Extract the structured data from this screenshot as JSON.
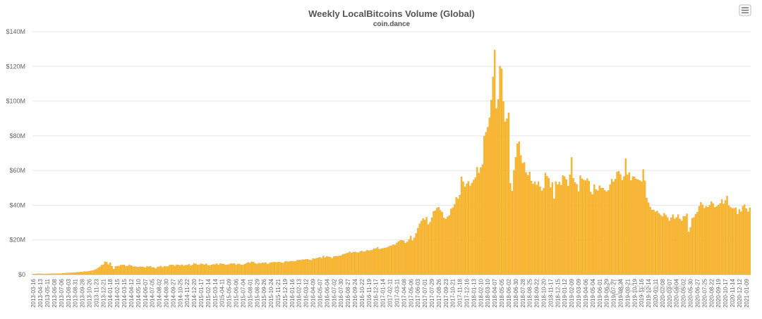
{
  "chart_data": {
    "type": "bar",
    "title": "Weekly LocalBitcoins Volume (Global)",
    "subtitle": "coin.dance",
    "ylim": [
      0,
      140000000
    ],
    "yticks": [
      {
        "value": 0,
        "label": "$0"
      },
      {
        "value": 20000000,
        "label": "$20M"
      },
      {
        "value": 40000000,
        "label": "$40M"
      },
      {
        "value": 60000000,
        "label": "$60M"
      },
      {
        "value": 80000000,
        "label": "$80M"
      },
      {
        "value": 100000000,
        "label": "$100M"
      },
      {
        "value": 120000000,
        "label": "$120M"
      },
      {
        "value": 140000000,
        "label": "$140M"
      }
    ],
    "grid": true,
    "bar_color": "#f7b731",
    "x_start": "2013-03-16",
    "x_step_weeks": 1,
    "tick_every_weeks": 4,
    "values_millions": [
      0.3,
      0.4,
      0.5,
      0.5,
      0.5,
      0.5,
      0.4,
      0.4,
      0.5,
      0.5,
      0.5,
      0.6,
      0.6,
      0.6,
      0.6,
      0.6,
      0.6,
      0.8,
      0.8,
      0.9,
      1.0,
      1.0,
      1.1,
      1.2,
      1.2,
      1.4,
      1.4,
      1.5,
      1.5,
      1.8,
      1.8,
      1.8,
      2.0,
      2.2,
      2.3,
      2.7,
      3.1,
      3.8,
      4.3,
      5.5,
      5.7,
      7.5,
      7.3,
      5.8,
      6.9,
      4.8,
      3.2,
      4.7,
      4.9,
      4.9,
      5.5,
      5.6,
      5.6,
      4.8,
      4.9,
      5.7,
      5.2,
      4.7,
      4.6,
      4.6,
      4.3,
      4.6,
      4.5,
      4.5,
      4.0,
      4.7,
      4.6,
      4.8,
      4.2,
      4.1,
      3.5,
      4.3,
      4.6,
      4.9,
      4.2,
      4.8,
      4.7,
      4.7,
      5.5,
      5.6,
      5.6,
      5.0,
      5.7,
      5.6,
      5.2,
      5.8,
      5.1,
      5.5,
      5.5,
      6.0,
      5.1,
      5.6,
      6.5,
      6.2,
      5.6,
      5.7,
      6.3,
      6.0,
      5.7,
      6.3,
      5.4,
      5.3,
      5.6,
      5.9,
      5.8,
      6.4,
      5.6,
      6.4,
      6.2,
      6.1,
      5.6,
      5.7,
      5.9,
      6.4,
      6.3,
      6.4,
      5.7,
      6.1,
      6.2,
      5.6,
      5.6,
      6.0,
      6.6,
      7.1,
      6.7,
      7.4,
      7.2,
      6.5,
      6.2,
      6.7,
      6.4,
      6.9,
      6.7,
      7.0,
      6.1,
      6.6,
      7.0,
      7.1,
      7.2,
      7.1,
      7.2,
      7.3,
      6.9,
      6.7,
      7.5,
      7.7,
      7.3,
      7.6,
      7.8,
      7.6,
      7.7,
      8.3,
      8.5,
      8.3,
      8.7,
      8.6,
      8.8,
      8.9,
      8.5,
      8.3,
      9.3,
      9.1,
      9.5,
      9.7,
      10.1,
      9.5,
      10.8,
      9.8,
      10.5,
      10.3,
      10.1,
      9.4,
      10.4,
      10.7,
      10.5,
      10.8,
      10.9,
      11.6,
      11.9,
      12.3,
      12.5,
      13.2,
      12.5,
      12.9,
      13.1,
      12.8,
      12.6,
      13.4,
      13.6,
      13.2,
      13.3,
      14.2,
      13.8,
      14.0,
      14.3,
      14.9,
      15.1,
      15.8,
      14.5,
      15.0,
      15.2,
      15.4,
      15.6,
      16.0,
      16.5,
      16.7,
      17.4,
      17.2,
      18.3,
      19.1,
      19.7,
      19.8,
      19.5,
      18.2,
      18.9,
      20.2,
      22.3,
      19.6,
      21.3,
      23.8,
      26.8,
      29.3,
      30.9,
      32.4,
      31.5,
      33.1,
      28.9,
      30.2,
      32.8,
      36.5,
      36.8,
      38.4,
      38.9,
      37.1,
      36.0,
      32.7,
      32.1,
      33.4,
      34.0,
      37.9,
      38.6,
      40.4,
      44.6,
      43.7,
      45.8,
      56.4,
      53.5,
      50.6,
      52.4,
      53.8,
      51.2,
      52.9,
      54.6,
      55.9,
      61.9,
      58.5,
      61.7,
      63.4,
      79.8,
      82.1,
      85.0,
      90.4,
      100.5,
      113.9,
      129.5,
      95.8,
      101.0,
      120.2,
      118.6,
      99.8,
      88.1,
      89.9,
      93.3,
      52.7,
      48.2,
      60.1,
      67.6,
      75.4,
      76.7,
      68.7,
      64.2,
      64.7,
      58.8,
      57.2,
      59.2,
      54.0,
      52.2,
      53.6,
      51.6,
      53.6,
      50.6,
      48.4,
      49.8,
      58.6,
      56.7,
      55.5,
      50.2,
      53.1,
      43.7,
      53.6,
      51.9,
      53.4,
      51.6,
      57.1,
      56.6,
      54.8,
      51.0,
      57.6,
      67.6,
      55.5,
      53.1,
      52.1,
      47.9,
      57.1,
      55.3,
      54.6,
      54.2,
      55.4,
      53.9,
      47.6,
      46.2,
      51.9,
      49.0,
      48.4,
      51.3,
      50.0,
      49.9,
      48.6,
      47.8,
      48.6,
      51.9,
      55.0,
      53.5,
      55.1,
      59.1,
      59.6,
      57.8,
      54.4,
      56.6,
      66.8,
      57.6,
      58.9,
      54.3,
      56.5,
      56.4,
      55.1,
      54.8,
      54.3,
      53.5,
      60.6,
      54.1,
      44.2,
      41.5,
      39.0,
      37.3,
      37.2,
      36.2,
      36.7,
      35.3,
      34.3,
      33.5,
      35.4,
      34.3,
      33.0,
      31.0,
      32.8,
      34.6,
      32.1,
      33.0,
      34.6,
      32.1,
      31.0,
      33.6,
      33.6,
      35.1,
      24.6,
      27.3,
      32.5,
      33.0,
      34.9,
      36.0,
      39.5,
      41.7,
      40.3,
      38.3,
      39.5,
      38.9,
      40.0,
      42.1,
      41.0,
      38.8,
      39.4,
      40.2,
      41.0,
      43.3,
      40.8,
      42.8,
      45.4,
      39.8,
      38.8,
      38.2,
      38.2,
      38.6,
      34.9,
      37.6,
      36.3,
      39.4,
      40.4,
      38.1,
      36.2,
      38.6
    ]
  },
  "menu_icon": "hamburger-menu-icon",
  "watermark": "Coin.dance"
}
